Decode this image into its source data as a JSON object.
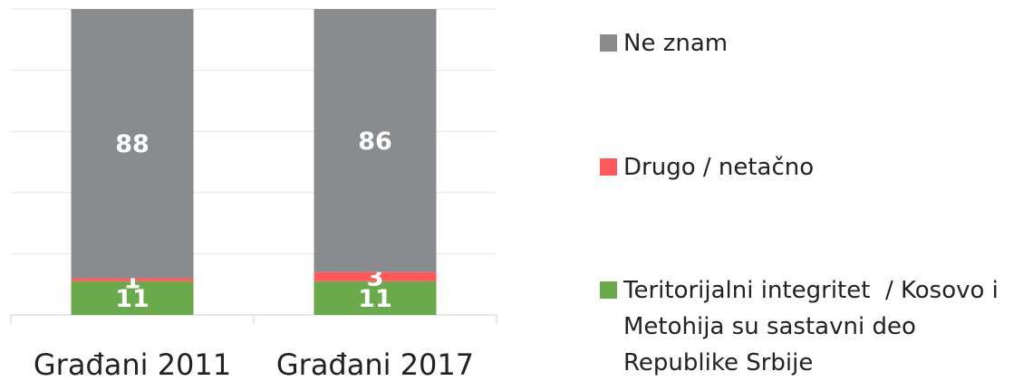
{
  "chart_data": {
    "type": "stacked_bar",
    "categories": [
      "Građani 2011",
      "Građani 2017"
    ],
    "series": [
      {
        "name": "Teritorijalni integritet  / Kosovo i Metohija su sastavni deo Republike Srbije",
        "color": "#6aaa4d",
        "values": [
          11,
          11
        ]
      },
      {
        "name": "Drugo / netačno",
        "color": "#ff595e",
        "values": [
          1,
          3
        ]
      },
      {
        "name": "Ne znam",
        "color": "#898c8e",
        "values": [
          88,
          86
        ]
      }
    ],
    "ylim": [
      0,
      100
    ],
    "yticks": [
      0,
      20,
      40,
      60,
      80,
      100
    ],
    "grid": true
  }
}
